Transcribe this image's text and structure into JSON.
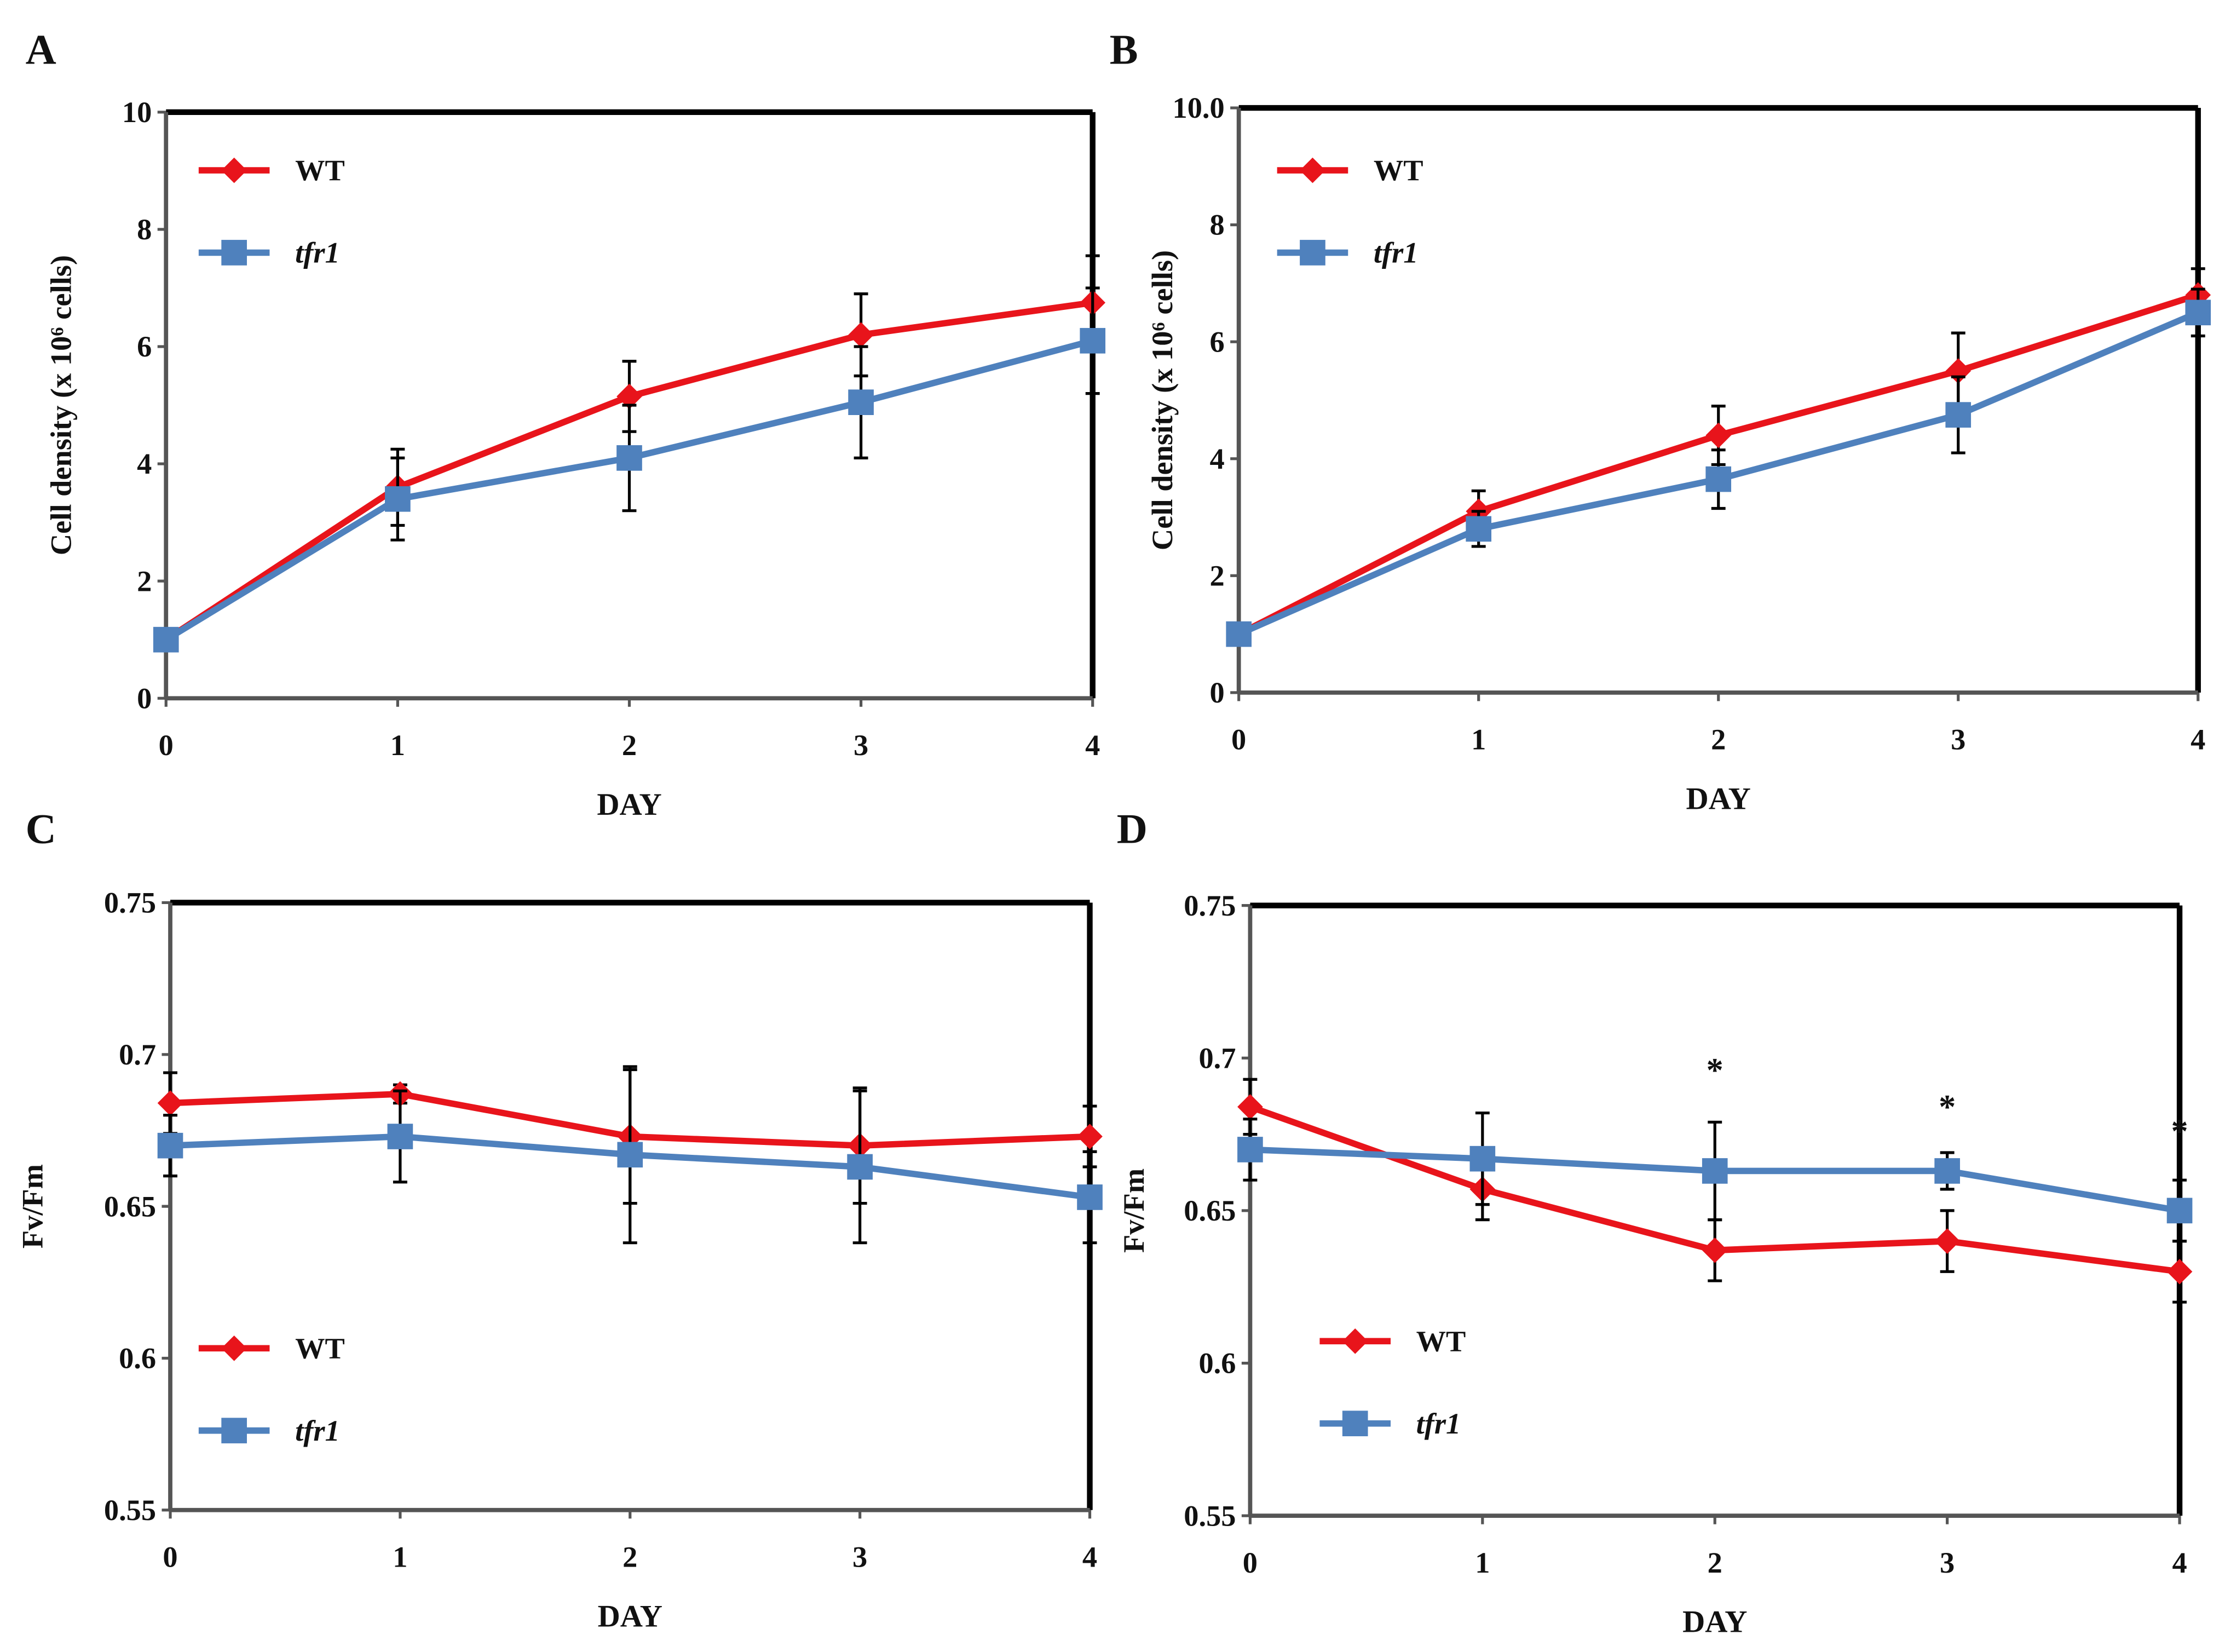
{
  "chart_data": [
    {
      "panel": "A",
      "type": "line",
      "xlabel": "DAY",
      "ylabel": "Cell density (x 10⁶ cells)",
      "x": [
        0,
        1,
        2,
        3,
        4
      ],
      "xlim": [
        0,
        4
      ],
      "ylim": [
        0,
        10
      ],
      "yticks": [
        "0",
        "2",
        "4",
        "6",
        "8",
        "10"
      ],
      "yticks_values": [
        0,
        2,
        4,
        6,
        8,
        10
      ],
      "legend_position": "top-left",
      "series": [
        {
          "name": "WT",
          "color": "#e8141b",
          "marker": "diamond",
          "values": [
            1,
            3.6,
            5.15,
            6.2,
            6.75
          ],
          "errors": [
            0,
            0.65,
            0.6,
            0.7,
            0.8
          ]
        },
        {
          "name": "tfr1",
          "color": "#4f81bd",
          "marker": "square",
          "values": [
            1,
            3.4,
            4.1,
            5.05,
            6.1
          ],
          "errors": [
            0,
            0.7,
            0.9,
            0.95,
            0.9
          ]
        }
      ],
      "annotations": []
    },
    {
      "panel": "B",
      "type": "line",
      "xlabel": "DAY",
      "ylabel": "Cell density (x 10⁶ cells)",
      "x": [
        0,
        1,
        2,
        3,
        4
      ],
      "xlim": [
        0,
        4
      ],
      "ylim": [
        0,
        10
      ],
      "yticks": [
        "0",
        "2",
        "4",
        "6",
        "8",
        "10.0"
      ],
      "yticks_values": [
        0,
        2,
        4,
        6,
        8,
        10
      ],
      "legend_position": "top-left",
      "series": [
        {
          "name": "WT",
          "color": "#e8141b",
          "marker": "diamond",
          "values": [
            1,
            3.1,
            4.4,
            5.5,
            6.8
          ],
          "errors": [
            0,
            0.35,
            0.5,
            0.65,
            0.45
          ]
        },
        {
          "name": "tfr1",
          "color": "#4f81bd",
          "marker": "square",
          "values": [
            1,
            2.8,
            3.65,
            4.75,
            6.5
          ],
          "errors": [
            0,
            0.3,
            0.5,
            0.65,
            0.4
          ]
        }
      ],
      "annotations": []
    },
    {
      "panel": "C",
      "type": "line",
      "xlabel": "DAY",
      "ylabel": "Fv/Fm",
      "x": [
        0,
        1,
        2,
        3,
        4
      ],
      "xlim": [
        0,
        4
      ],
      "ylim": [
        0.55,
        0.75
      ],
      "yticks": [
        "0.55",
        "0.6",
        "0.65",
        "0.7",
        "0.75"
      ],
      "yticks_values": [
        0.55,
        0.6,
        0.65,
        0.7,
        0.75
      ],
      "legend_position": "bottom-left",
      "series": [
        {
          "name": "WT",
          "color": "#e8141b",
          "marker": "diamond",
          "values": [
            0.684,
            0.687,
            0.673,
            0.67,
            0.673
          ],
          "errors": [
            0.01,
            0.003,
            0.022,
            0.019,
            0.01
          ]
        },
        {
          "name": "tfr1",
          "color": "#4f81bd",
          "marker": "square",
          "values": [
            0.67,
            0.673,
            0.667,
            0.663,
            0.653
          ],
          "errors": [
            0.01,
            0.015,
            0.029,
            0.025,
            0.015
          ]
        }
      ],
      "annotations": []
    },
    {
      "panel": "D",
      "type": "line",
      "xlabel": "DAY",
      "ylabel": "Fv/Fm",
      "x": [
        0,
        1,
        2,
        3,
        4
      ],
      "xlim": [
        0,
        4
      ],
      "ylim": [
        0.55,
        0.75
      ],
      "yticks": [
        "0.55",
        "0.6",
        "0.65",
        "0.7",
        "0.75"
      ],
      "yticks_values": [
        0.55,
        0.6,
        0.65,
        0.7,
        0.75
      ],
      "legend_position": "bottom-left",
      "series": [
        {
          "name": "WT",
          "color": "#e8141b",
          "marker": "diamond",
          "values": [
            0.684,
            0.657,
            0.637,
            0.64,
            0.63
          ],
          "errors": [
            0.009,
            0.01,
            0.01,
            0.01,
            0.01
          ]
        },
        {
          "name": "tfr1",
          "color": "#4f81bd",
          "marker": "square",
          "values": [
            0.67,
            0.667,
            0.663,
            0.663,
            0.65
          ],
          "errors": [
            0.01,
            0.015,
            0.016,
            0.006,
            0.01
          ]
        }
      ],
      "annotations": [
        {
          "text": "*",
          "x": 2,
          "y": 0.697
        },
        {
          "text": "*",
          "x": 3,
          "y": 0.685
        },
        {
          "text": "*",
          "x": 4,
          "y": 0.677
        }
      ]
    }
  ]
}
